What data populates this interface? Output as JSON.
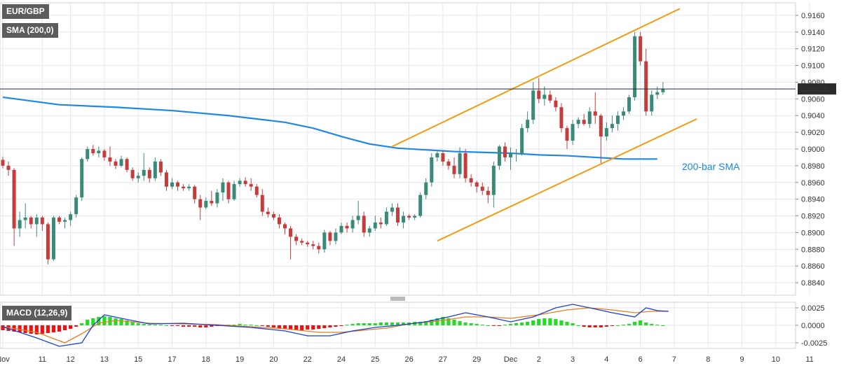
{
  "colors": {
    "up": "#3a8a78",
    "down": "#c43c3c",
    "sma": "#1e88e5",
    "channel": "#f39c12",
    "macd": "#1a3fd6",
    "signal": "#e67e22",
    "hist_pos": "#22dd22",
    "hist_neg": "#ee1111",
    "grid": "#e6e6ee",
    "label_bg": "#5c5c5c",
    "price_tag_bg": "#2c2c2c"
  },
  "header": {
    "symbol": "EUR/GBP",
    "indicator": "SMA (200,0)",
    "macd_label": "MACD (12,26,9)"
  },
  "chart_data": [
    {
      "type": "candlestick",
      "title": "EUR/GBP",
      "x_tick_labels": [
        "Nov",
        "11",
        "12",
        "13",
        "15",
        "17",
        "18",
        "19",
        "20",
        "22",
        "24",
        "25",
        "26",
        "27",
        "29",
        "Dec",
        "2",
        "3",
        "4",
        "6",
        "7",
        "8",
        "9",
        "10",
        "11"
      ],
      "ylim": [
        0.8825,
        0.9175
      ],
      "y_ticks": [
        "0.9160",
        "0.9140",
        "0.9120",
        "0.9100",
        "0.9080",
        "0.9060",
        "0.9040",
        "0.9020",
        "0.9000",
        "0.8980",
        "0.8960",
        "0.8940",
        "0.8920",
        "0.8900",
        "0.8880",
        "0.8860",
        "0.8840"
      ],
      "current_price": "0.90719",
      "annotation": "200-bar SMA",
      "candles": [
        [
          0.8987,
          0.8991,
          0.8977,
          0.898
        ],
        [
          0.898,
          0.8985,
          0.8968,
          0.8975
        ],
        [
          0.8975,
          0.8977,
          0.8884,
          0.8905
        ],
        [
          0.8905,
          0.8925,
          0.8895,
          0.8915
        ],
        [
          0.8915,
          0.8935,
          0.8905,
          0.8918
        ],
        [
          0.8918,
          0.892,
          0.8905,
          0.891
        ],
        [
          0.891,
          0.8922,
          0.8895,
          0.8918
        ],
        [
          0.8918,
          0.892,
          0.8902,
          0.891
        ],
        [
          0.891,
          0.8912,
          0.8862,
          0.8868
        ],
        [
          0.8868,
          0.892,
          0.8866,
          0.8918
        ],
        [
          0.8918,
          0.892,
          0.891,
          0.8913
        ],
        [
          0.8913,
          0.8918,
          0.8905,
          0.8915
        ],
        [
          0.8915,
          0.8925,
          0.8908,
          0.8922
        ],
        [
          0.8922,
          0.8945,
          0.8918,
          0.8942
        ],
        [
          0.8942,
          0.899,
          0.8938,
          0.8988
        ],
        [
          0.8988,
          0.9003,
          0.8985,
          0.9
        ],
        [
          0.9,
          0.9005,
          0.8992,
          0.8995
        ],
        [
          0.8995,
          0.9003,
          0.899,
          0.8998
        ],
        [
          0.8998,
          0.9,
          0.8986,
          0.899
        ],
        [
          0.899,
          0.9003,
          0.898,
          0.8985
        ],
        [
          0.8985,
          0.8988,
          0.8976,
          0.898
        ],
        [
          0.898,
          0.8992,
          0.8978,
          0.8988
        ],
        [
          0.8988,
          0.899,
          0.8972,
          0.8975
        ],
        [
          0.8975,
          0.8978,
          0.8962,
          0.8965
        ],
        [
          0.8965,
          0.8972,
          0.896,
          0.8968
        ],
        [
          0.8968,
          0.8995,
          0.8962,
          0.8975
        ],
        [
          0.8975,
          0.8978,
          0.896,
          0.8965
        ],
        [
          0.8965,
          0.899,
          0.8962,
          0.8985
        ],
        [
          0.8985,
          0.8988,
          0.8968,
          0.8972
        ],
        [
          0.8972,
          0.8975,
          0.895,
          0.8955
        ],
        [
          0.8955,
          0.8965,
          0.8952,
          0.896
        ],
        [
          0.896,
          0.8962,
          0.895,
          0.8955
        ],
        [
          0.8955,
          0.8958,
          0.895,
          0.8953
        ],
        [
          0.8953,
          0.8958,
          0.895,
          0.8955
        ],
        [
          0.8955,
          0.8957,
          0.8935,
          0.894
        ],
        [
          0.894,
          0.8945,
          0.8915,
          0.893
        ],
        [
          0.893,
          0.8942,
          0.8928,
          0.8938
        ],
        [
          0.8938,
          0.895,
          0.8932,
          0.8935
        ],
        [
          0.8935,
          0.8952,
          0.893,
          0.8948
        ],
        [
          0.8948,
          0.8965,
          0.8938,
          0.896
        ],
        [
          0.896,
          0.8962,
          0.8935,
          0.894
        ],
        [
          0.894,
          0.8962,
          0.8938,
          0.8958
        ],
        [
          0.8958,
          0.8965,
          0.8955,
          0.8962
        ],
        [
          0.8962,
          0.8966,
          0.8955,
          0.8958
        ],
        [
          0.8958,
          0.8965,
          0.895,
          0.8955
        ],
        [
          0.8955,
          0.8958,
          0.8942,
          0.8945
        ],
        [
          0.8945,
          0.8952,
          0.892,
          0.8925
        ],
        [
          0.8925,
          0.893,
          0.8918,
          0.8922
        ],
        [
          0.8922,
          0.8925,
          0.8915,
          0.8918
        ],
        [
          0.8918,
          0.8922,
          0.8905,
          0.891
        ],
        [
          0.891,
          0.8912,
          0.8898,
          0.8905
        ],
        [
          0.8905,
          0.8908,
          0.8868,
          0.8895
        ],
        [
          0.8895,
          0.8898,
          0.8885,
          0.889
        ],
        [
          0.889,
          0.8893,
          0.8885,
          0.8888
        ],
        [
          0.8888,
          0.889,
          0.8883,
          0.8886
        ],
        [
          0.8886,
          0.889,
          0.888,
          0.8884
        ],
        [
          0.8884,
          0.8888,
          0.8875,
          0.888
        ],
        [
          0.888,
          0.8903,
          0.8876,
          0.89
        ],
        [
          0.89,
          0.8902,
          0.8885,
          0.889
        ],
        [
          0.889,
          0.8905,
          0.8886,
          0.89
        ],
        [
          0.89,
          0.8912,
          0.8898,
          0.8908
        ],
        [
          0.8908,
          0.8912,
          0.89,
          0.8905
        ],
        [
          0.8905,
          0.892,
          0.89,
          0.8915
        ],
        [
          0.8915,
          0.8938,
          0.891,
          0.892
        ],
        [
          0.892,
          0.8925,
          0.8895,
          0.89
        ],
        [
          0.89,
          0.8908,
          0.8895,
          0.8905
        ],
        [
          0.8905,
          0.892,
          0.8902,
          0.8912
        ],
        [
          0.8912,
          0.8918,
          0.8905,
          0.891
        ],
        [
          0.891,
          0.893,
          0.8908,
          0.8925
        ],
        [
          0.8925,
          0.8935,
          0.892,
          0.893
        ],
        [
          0.893,
          0.8935,
          0.8908,
          0.8912
        ],
        [
          0.8912,
          0.8925,
          0.8905,
          0.892
        ],
        [
          0.892,
          0.8922,
          0.8915,
          0.8918
        ],
        [
          0.8918,
          0.8922,
          0.8915,
          0.892
        ],
        [
          0.892,
          0.8948,
          0.8918,
          0.8945
        ],
        [
          0.8945,
          0.8965,
          0.894,
          0.896
        ],
        [
          0.896,
          0.8995,
          0.8955,
          0.899
        ],
        [
          0.899,
          0.8997,
          0.8985,
          0.8995
        ],
        [
          0.8995,
          0.8998,
          0.898,
          0.8985
        ],
        [
          0.8985,
          0.8988,
          0.8975,
          0.898
        ],
        [
          0.898,
          0.899,
          0.8965,
          0.897
        ],
        [
          0.897,
          0.9002,
          0.8965,
          0.8995
        ],
        [
          0.8995,
          0.9,
          0.896,
          0.8965
        ],
        [
          0.8965,
          0.897,
          0.8955,
          0.896
        ],
        [
          0.896,
          0.8962,
          0.8948,
          0.8955
        ],
        [
          0.8955,
          0.896,
          0.8945,
          0.895
        ],
        [
          0.895,
          0.8955,
          0.8935,
          0.8945
        ],
        [
          0.8945,
          0.8985,
          0.893,
          0.898
        ],
        [
          0.898,
          0.9005,
          0.8975,
          0.9003
        ],
        [
          0.9003,
          0.9008,
          0.8985,
          0.899
        ],
        [
          0.899,
          0.9002,
          0.8975,
          0.8995
        ],
        [
          0.8995,
          0.9,
          0.8985,
          0.8995
        ],
        [
          0.8995,
          0.903,
          0.8992,
          0.9025
        ],
        [
          0.9025,
          0.9045,
          0.902,
          0.9035
        ],
        [
          0.9035,
          0.908,
          0.903,
          0.907
        ],
        [
          0.907,
          0.9085,
          0.9055,
          0.906
        ],
        [
          0.906,
          0.9075,
          0.9052,
          0.9065
        ],
        [
          0.9065,
          0.907,
          0.9055,
          0.9058
        ],
        [
          0.9058,
          0.9062,
          0.9045,
          0.905
        ],
        [
          0.905,
          0.9055,
          0.902,
          0.9025
        ],
        [
          0.9025,
          0.9028,
          0.9,
          0.901
        ],
        [
          0.901,
          0.9035,
          0.9005,
          0.903
        ],
        [
          0.903,
          0.9038,
          0.9025,
          0.9035
        ],
        [
          0.9035,
          0.9042,
          0.9028,
          0.903
        ],
        [
          0.903,
          0.905,
          0.9025,
          0.9045
        ],
        [
          0.9045,
          0.9068,
          0.903,
          0.904
        ],
        [
          0.904,
          0.9042,
          0.8983,
          0.9015
        ],
        [
          0.9015,
          0.9032,
          0.901,
          0.9025
        ],
        [
          0.9025,
          0.904,
          0.902,
          0.903
        ],
        [
          0.903,
          0.9045,
          0.9022,
          0.904
        ],
        [
          0.904,
          0.905,
          0.9035,
          0.9045
        ],
        [
          0.9045,
          0.9065,
          0.9042,
          0.9062
        ],
        [
          0.9062,
          0.914,
          0.9058,
          0.9135
        ],
        [
          0.9135,
          0.914,
          0.91,
          0.9105
        ],
        [
          0.9105,
          0.912,
          0.904,
          0.9045
        ],
        [
          0.9045,
          0.907,
          0.904,
          0.9065
        ],
        [
          0.9065,
          0.9075,
          0.906,
          0.9068
        ],
        [
          0.9068,
          0.908,
          0.9065,
          0.9072
        ]
      ],
      "sma_200": [
        [
          0,
          0.9062
        ],
        [
          10,
          0.9053
        ],
        [
          20,
          0.905
        ],
        [
          30,
          0.9046
        ],
        [
          40,
          0.904
        ],
        [
          50,
          0.9032
        ],
        [
          55,
          0.9025
        ],
        [
          60,
          0.9015
        ],
        [
          65,
          0.9006
        ],
        [
          70,
          0.9001
        ],
        [
          75,
          0.8999
        ],
        [
          80,
          0.8997
        ],
        [
          85,
          0.8996
        ],
        [
          90,
          0.8995
        ],
        [
          95,
          0.8993
        ],
        [
          100,
          0.8992
        ],
        [
          105,
          0.899
        ],
        [
          110,
          0.8988
        ],
        [
          116,
          0.8988
        ]
      ],
      "channel_upper": [
        [
          69,
          0.9003
        ],
        [
          120,
          0.9168
        ]
      ],
      "channel_lower": [
        [
          77,
          0.889
        ],
        [
          123,
          0.9036
        ]
      ]
    },
    {
      "type": "macd",
      "title": "MACD (12,26,9)",
      "ylim": [
        -0.0033,
        0.0033
      ],
      "y_ticks": [
        "0.0025",
        "0.0000",
        "-0.0025"
      ],
      "histogram": [
        -0.0007,
        -0.0008,
        -0.0009,
        -0.001,
        -0.0011,
        -0.0012,
        -0.0013,
        -0.0012,
        -0.0011,
        -0.001,
        -0.0009,
        -0.0007,
        -0.0005,
        -0.0002,
        0.0003,
        0.0008,
        0.001,
        0.0012,
        0.0013,
        0.0012,
        0.001,
        0.0009,
        0.0007,
        0.0005,
        0.0003,
        0.0002,
        0.0001,
        0.0001,
        0.0001,
        0.0,
        -0.0001,
        -0.0001,
        -0.0002,
        -0.0002,
        -0.0002,
        -0.0003,
        -0.0003,
        -0.0002,
        -0.0001,
        0.0,
        0.0001,
        0.0001,
        0.0002,
        0.0001,
        0.0001,
        0.0,
        -0.0001,
        -0.0002,
        -0.0003,
        -0.0004,
        -0.0005,
        -0.0006,
        -0.0007,
        -0.0007,
        -0.0006,
        -0.0006,
        -0.0005,
        -0.0004,
        -0.0003,
        -0.0002,
        -0.0001,
        0.0001,
        0.0002,
        0.0003,
        0.0003,
        0.0003,
        0.0003,
        0.0004,
        0.0004,
        0.0004,
        0.0004,
        0.0004,
        0.0004,
        0.0005,
        0.0005,
        0.0006,
        0.0008,
        0.001,
        0.0012,
        0.001,
        0.0008,
        0.0006,
        0.0004,
        0.0003,
        0.0002,
        0.0001,
        0.0,
        -0.0001,
        -0.0001,
        0.0001,
        0.0002,
        0.0003,
        0.0004,
        0.0005,
        0.0007,
        0.0009,
        0.001,
        0.001,
        0.0009,
        0.0007,
        0.0005,
        0.0003,
        0.0,
        -0.0002,
        -0.0003,
        -0.0003,
        -0.0003,
        -0.0002,
        -0.0001,
        0.0,
        0.0001,
        0.0002,
        0.0005,
        0.0007,
        0.0004,
        0.0002,
        0.0001,
        0.0
      ],
      "macd_line": [
        [
          0,
          -0.0002
        ],
        [
          6,
          -0.0018
        ],
        [
          10,
          -0.003
        ],
        [
          14,
          -0.0025
        ],
        [
          16,
          0.0
        ],
        [
          18,
          0.0015
        ],
        [
          21,
          0.001
        ],
        [
          26,
          0.0002
        ],
        [
          32,
          0.0003
        ],
        [
          38,
          0.0
        ],
        [
          44,
          -0.0003
        ],
        [
          50,
          -0.0008
        ],
        [
          54,
          -0.0015
        ],
        [
          58,
          -0.0015
        ],
        [
          62,
          -0.0008
        ],
        [
          66,
          -0.0003
        ],
        [
          70,
          0.0
        ],
        [
          75,
          0.0005
        ],
        [
          79,
          0.0012
        ],
        [
          82,
          0.0018
        ],
        [
          86,
          0.0012
        ],
        [
          90,
          0.0005
        ],
        [
          94,
          0.0012
        ],
        [
          98,
          0.0025
        ],
        [
          101,
          0.003
        ],
        [
          104,
          0.0025
        ],
        [
          108,
          0.0018
        ],
        [
          112,
          0.0012
        ],
        [
          114,
          0.0025
        ],
        [
          116,
          0.0021
        ],
        [
          118,
          0.002
        ]
      ],
      "signal_line": [
        [
          0,
          -0.0002
        ],
        [
          6,
          -0.001
        ],
        [
          11,
          -0.0025
        ],
        [
          14,
          -0.0012
        ],
        [
          17,
          0.0003
        ],
        [
          20,
          0.0007
        ],
        [
          26,
          0.0003
        ],
        [
          32,
          0.0002
        ],
        [
          38,
          0.0001
        ],
        [
          44,
          -0.0002
        ],
        [
          50,
          -0.0005
        ],
        [
          56,
          -0.001
        ],
        [
          60,
          -0.001
        ],
        [
          64,
          -0.0007
        ],
        [
          68,
          -0.0004
        ],
        [
          72,
          0.0002
        ],
        [
          78,
          0.0007
        ],
        [
          82,
          0.0012
        ],
        [
          86,
          0.0012
        ],
        [
          90,
          0.001
        ],
        [
          95,
          0.0015
        ],
        [
          100,
          0.0022
        ],
        [
          104,
          0.0025
        ],
        [
          108,
          0.0022
        ],
        [
          112,
          0.0018
        ],
        [
          115,
          0.002
        ],
        [
          118,
          0.002
        ]
      ]
    }
  ]
}
